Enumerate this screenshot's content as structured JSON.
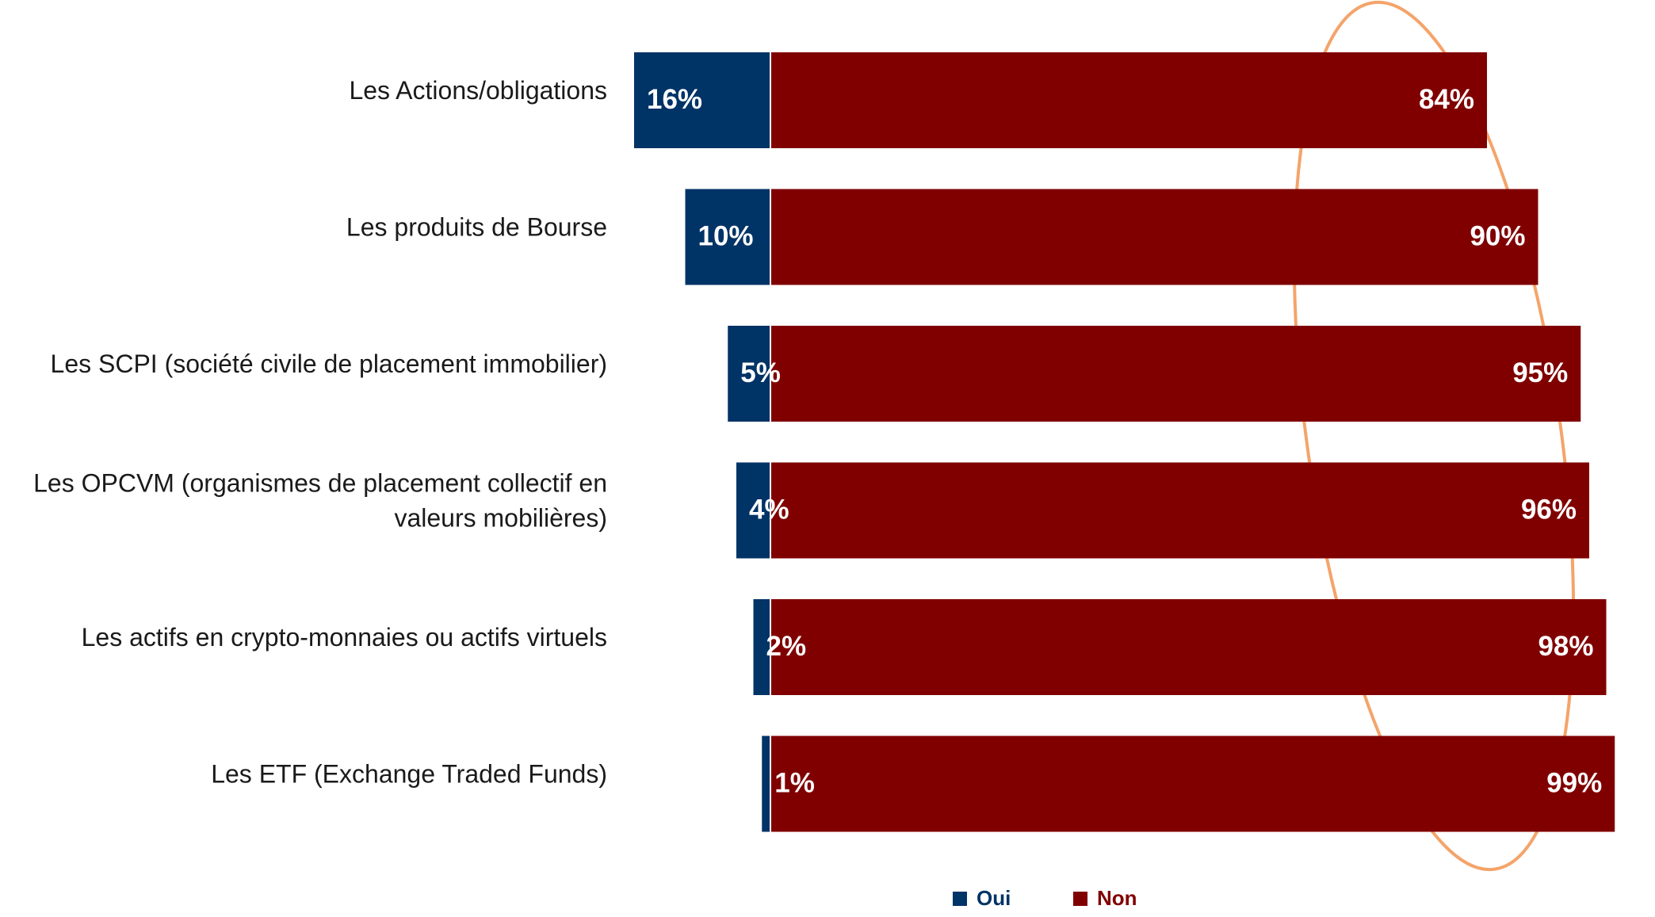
{
  "chart_data": {
    "type": "bar",
    "orientation": "horizontal",
    "stacked": true,
    "categories": [
      "Les Actions/obligations",
      "Les produits de Bourse",
      "Les SCPI (société civile de placement immobilier)",
      "Les OPCVM (organismes de placement collectif en valeurs mobilières)",
      "Les actifs en crypto-monnaies ou actifs virtuels",
      "Les ETF (Exchange Traded Funds)"
    ],
    "category_lines": [
      [
        "Les Actions/obligations"
      ],
      [
        "Les produits de Bourse"
      ],
      [
        "Les SCPI (société civile de placement immobilier)"
      ],
      [
        "Les OPCVM (organismes de placement collectif en",
        "valeurs mobilières)"
      ],
      [
        "Les actifs en crypto-monnaies ou actifs virtuels"
      ],
      [
        "Les ETF (Exchange Traded Funds)"
      ]
    ],
    "series": [
      {
        "name": "Oui",
        "color": "#003366",
        "values": [
          16,
          10,
          5,
          4,
          2,
          1
        ],
        "labels": [
          "16%",
          "10%",
          "5%",
          "4%",
          "2%",
          "1%"
        ]
      },
      {
        "name": "Non",
        "color": "#800000",
        "values": [
          84,
          90,
          95,
          96,
          98,
          99
        ],
        "labels": [
          "84%",
          "90%",
          "95%",
          "96%",
          "98%",
          "99%"
        ]
      }
    ],
    "unit": "%",
    "title": "",
    "xlabel": "",
    "ylabel": "",
    "xlim": [
      -20,
      100
    ],
    "grid": false,
    "legend_position": "bottom-right",
    "highlight": {
      "shape": "ellipse",
      "color": "#F4A46A",
      "around_series": "Non"
    }
  }
}
